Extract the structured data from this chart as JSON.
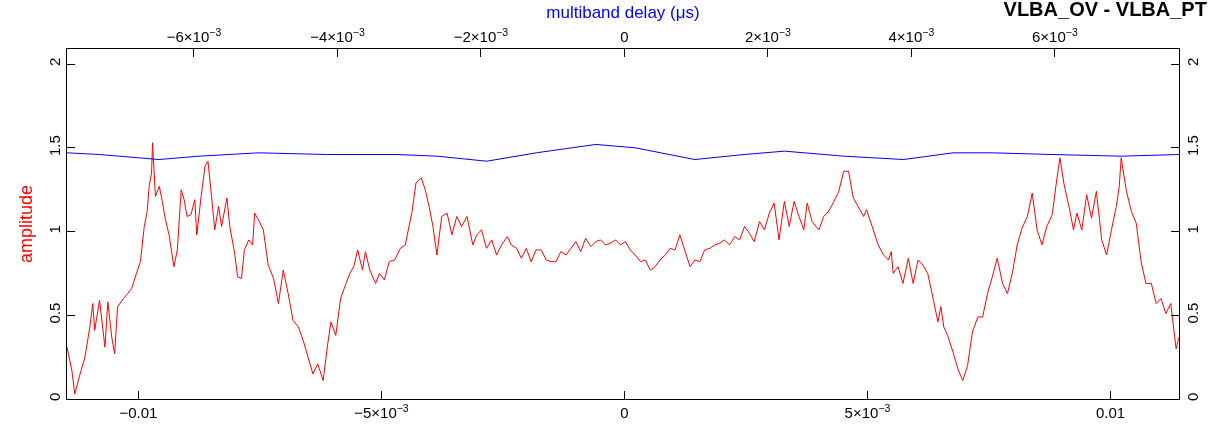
{
  "chart_data": {
    "type": "line",
    "title": "VLBA_OV - VLBA_PT",
    "ylabel": "amplitude",
    "x2label": "multiband delay (μs)",
    "xlim": [
      -0.01147,
      0.01141
    ],
    "xticks": [
      {
        "value": -0.01,
        "label": "−0.01"
      },
      {
        "value": -0.005,
        "label": "−5×10$^{−3}$"
      },
      0,
      {
        "value": 0.005,
        "label": "5×10$^{−3}$"
      },
      {
        "value": 0.01,
        "label": "0.01"
      }
    ],
    "x2lim": [
      -0.00777,
      0.00773
    ],
    "x2ticks": [
      {
        "value": -0.006,
        "label": "−6×10$^{−3}$"
      },
      {
        "value": -0.004,
        "label": "−4×10$^{−3}$"
      },
      {
        "value": -0.002,
        "label": "−2×10$^{−3}$"
      },
      0,
      {
        "value": 0.002,
        "label": "2×10$^{−3}$"
      },
      {
        "value": 0.004,
        "label": "4×10$^{−3}$"
      },
      {
        "value": 0.006,
        "label": "6×10$^{−3}$"
      }
    ],
    "ylim": [
      0,
      2.09
    ],
    "yticks": [
      0,
      0.5,
      1,
      1.5,
      2
    ],
    "y2lim": [
      0,
      2.09
    ],
    "y2ticks": [
      0,
      0.5,
      1,
      1.5,
      2
    ],
    "marker": "none",
    "line_style": "solid",
    "series": [
      {
        "color": "#ff0000",
        "x": [
          -0.01147,
          -0.01137,
          -0.01131,
          -0.0112,
          -0.0111,
          -0.011,
          -0.01094,
          -0.0109,
          -0.0108,
          -0.01069,
          -0.01063,
          -0.01055,
          -0.01049,
          -0.01043,
          -0.01031,
          -0.01022,
          -0.01014,
          -0.01004,
          -0.00996,
          -0.00988,
          -0.00982,
          -0.00978,
          -0.00973,
          -0.00971,
          -0.00965,
          -0.00957,
          -0.00951,
          -0.00945,
          -0.00937,
          -0.00927,
          -0.0092,
          -0.00912,
          -0.00906,
          -0.009,
          -0.00892,
          -0.00884,
          -0.0088,
          -0.00871,
          -0.00863,
          -0.00857,
          -0.00851,
          -0.00843,
          -0.00835,
          -0.00829,
          -0.00818,
          -0.00812,
          -0.00802,
          -0.00796,
          -0.00788,
          -0.00782,
          -0.00773,
          -0.00765,
          -0.00761,
          -0.00753,
          -0.00743,
          -0.00733,
          -0.00722,
          -0.00712,
          -0.00702,
          -0.00692,
          -0.00682,
          -0.00671,
          -0.00661,
          -0.00651,
          -0.00641,
          -0.00631,
          -0.0062,
          -0.0061,
          -0.00604,
          -0.00594,
          -0.00584,
          -0.00573,
          -0.00565,
          -0.00557,
          -0.00549,
          -0.00539,
          -0.00533,
          -0.00524,
          -0.00512,
          -0.00504,
          -0.00494,
          -0.00484,
          -0.00473,
          -0.00461,
          -0.00451,
          -0.00437,
          -0.00429,
          -0.00418,
          -0.0041,
          -0.00402,
          -0.00394,
          -0.00386,
          -0.00376,
          -0.00365,
          -0.00355,
          -0.00345,
          -0.00335,
          -0.00324,
          -0.00312,
          -0.00304,
          -0.00294,
          -0.00284,
          -0.00273,
          -0.00263,
          -0.00253,
          -0.00241,
          -0.00233,
          -0.00222,
          -0.00212,
          -0.00202,
          -0.00192,
          -0.00182,
          -0.00171,
          -0.00161,
          -0.00151,
          -0.00141,
          -0.00131,
          -0.0012,
          -0.0011,
          -0.001,
          -0.0009,
          -0.0008,
          -0.00069,
          -0.00059,
          -0.00049,
          -0.00039,
          -0.00029,
          -0.00018,
          -8e-05,
          2e-05,
          0.00012,
          0.00022,
          0.00033,
          0.00043,
          0.00053,
          0.00063,
          0.00073,
          0.00084,
          0.00094,
          0.00104,
          0.00114,
          0.00124,
          0.00135,
          0.00145,
          0.00155,
          0.00165,
          0.00176,
          0.00186,
          0.00196,
          0.00206,
          0.00216,
          0.00227,
          0.00237,
          0.00247,
          0.00257,
          0.00267,
          0.00278,
          0.00288,
          0.00298,
          0.00308,
          0.00318,
          0.00329,
          0.00339,
          0.00349,
          0.00359,
          0.00369,
          0.00376,
          0.00386,
          0.004,
          0.0041,
          0.0042,
          0.00431,
          0.00441,
          0.00451,
          0.00461,
          0.00471,
          0.00492,
          0.00498,
          0.00512,
          0.00522,
          0.00533,
          0.00543,
          0.00549,
          0.00553,
          0.00563,
          0.00573,
          0.00584,
          0.00594,
          0.00604,
          0.00614,
          0.00624,
          0.00635,
          0.00645,
          0.00651,
          0.00657,
          0.00665,
          0.00676,
          0.00686,
          0.00696,
          0.00706,
          0.00716,
          0.00727,
          0.00737,
          0.00747,
          0.00757,
          0.00767,
          0.00778,
          0.00788,
          0.00798,
          0.00808,
          0.00818,
          0.00829,
          0.00839,
          0.00849,
          0.00859,
          0.00869,
          0.0088,
          0.0089,
          0.00896,
          0.00904,
          0.00916,
          0.00924,
          0.00931,
          0.00941,
          0.00951,
          0.00961,
          0.00971,
          0.00982,
          0.00992,
          0.01002,
          0.01012,
          0.01018,
          0.01022,
          0.01033,
          0.01043,
          0.01053,
          0.01063,
          0.01073,
          0.01084,
          0.01094,
          0.01104,
          0.01114,
          0.01124,
          0.01135,
          0.01141
        ],
        "values": [
          0.31,
          0.17,
          0.03,
          0.15,
          0.25,
          0.43,
          0.57,
          0.41,
          0.59,
          0.31,
          0.58,
          0.37,
          0.27,
          0.55,
          0.6,
          0.63,
          0.66,
          0.75,
          0.82,
          1.03,
          1.12,
          1.27,
          1.35,
          1.53,
          1.21,
          1.27,
          1.18,
          1.08,
          0.98,
          0.79,
          0.89,
          1.25,
          1.19,
          1.09,
          1.1,
          1.19,
          0.98,
          1.21,
          1.39,
          1.42,
          1.25,
          1.01,
          1.15,
          1.03,
          1.2,
          1.03,
          0.87,
          0.73,
          0.72,
          0.89,
          0.95,
          0.92,
          1.11,
          1.07,
          1.01,
          0.8,
          0.72,
          0.57,
          0.77,
          0.63,
          0.47,
          0.43,
          0.35,
          0.25,
          0.15,
          0.21,
          0.11,
          0.34,
          0.46,
          0.38,
          0.6,
          0.69,
          0.75,
          0.79,
          0.89,
          0.77,
          0.88,
          0.77,
          0.69,
          0.75,
          0.71,
          0.82,
          0.83,
          0.9,
          0.92,
          1.12,
          1.29,
          1.32,
          1.25,
          1.15,
          1.03,
          0.86,
          1.09,
          1.11,
          0.98,
          1.09,
          1.03,
          1.09,
          0.92,
          0.98,
          1.01,
          0.9,
          0.95,
          0.86,
          0.92,
          0.97,
          0.92,
          0.9,
          0.84,
          0.9,
          0.82,
          0.89,
          0.89,
          0.83,
          0.82,
          0.82,
          0.88,
          0.86,
          0.9,
          0.94,
          0.88,
          0.96,
          0.91,
          0.94,
          0.95,
          0.92,
          0.93,
          0.95,
          0.92,
          0.94,
          0.89,
          0.86,
          0.82,
          0.83,
          0.77,
          0.79,
          0.83,
          0.86,
          0.9,
          0.89,
          0.98,
          0.89,
          0.79,
          0.83,
          0.82,
          0.89,
          0.9,
          0.92,
          0.93,
          0.95,
          0.92,
          0.97,
          0.95,
          1.03,
          0.99,
          0.94,
          1.06,
          1.01,
          1.11,
          1.17,
          0.95,
          1.18,
          1.03,
          1.18,
          1.09,
          1.01,
          1.17,
          1.06,
          1.01,
          1.09,
          1.12,
          1.18,
          1.24,
          1.36,
          1.36,
          1.2,
          1.09,
          1.13,
          1.01,
          0.92,
          0.86,
          0.83,
          0.88,
          0.75,
          0.79,
          0.69,
          0.84,
          0.69,
          0.83,
          0.8,
          0.75,
          0.6,
          0.46,
          0.55,
          0.43,
          0.38,
          0.28,
          0.18,
          0.11,
          0.2,
          0.4,
          0.49,
          0.49,
          0.63,
          0.73,
          0.84,
          0.69,
          0.63,
          0.75,
          0.92,
          1.02,
          1.09,
          1.23,
          1.01,
          0.92,
          1.03,
          1.1,
          1.32,
          1.44,
          1.29,
          1.13,
          1.01,
          1.11,
          1.01,
          1.22,
          1.08,
          1.24,
          0.95,
          0.86,
          1.01,
          1.15,
          1.27,
          1.44,
          1.24,
          1.12,
          1.05,
          0.82,
          0.69,
          0.69,
          0.57,
          0.6,
          0.51,
          0.57,
          0.3,
          0.37
        ]
      },
      {
        "color": "#0000ff",
        "axis": "x2",
        "x": [
          -0.00777,
          -0.00732,
          -0.00649,
          -0.00593,
          -0.0051,
          -0.00414,
          -0.00317,
          -0.00261,
          -0.00192,
          -0.00123,
          -0.0004,
          0.00015,
          0.00098,
          0.00167,
          0.00223,
          0.00306,
          0.00389,
          0.00458,
          0.00513,
          0.00596,
          0.00693,
          0.00773
        ],
        "values": [
          1.47,
          1.46,
          1.43,
          1.45,
          1.47,
          1.46,
          1.46,
          1.45,
          1.42,
          1.47,
          1.52,
          1.5,
          1.43,
          1.46,
          1.48,
          1.45,
          1.43,
          1.47,
          1.47,
          1.46,
          1.45,
          1.46
        ]
      }
    ]
  }
}
